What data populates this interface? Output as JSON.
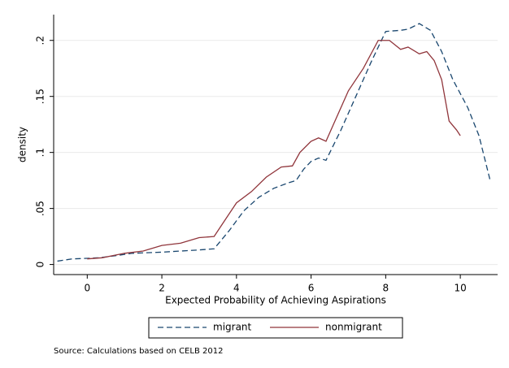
{
  "chart_data": {
    "type": "line",
    "x_label": "Expected Probability of Achieving Aspirations",
    "y_label": "density",
    "note": "Source: Calculations based on CELB 2012",
    "xlim": [
      -0.9,
      11
    ],
    "ylim": [
      -0.009,
      0.223
    ],
    "xticks": [
      0,
      2,
      4,
      6,
      8,
      10
    ],
    "yticks": [
      0,
      {
        "value": 0.05,
        "label": ".05"
      },
      {
        "value": 0.1,
        "label": ".1"
      },
      {
        "value": 0.15,
        "label": ".15"
      },
      {
        "value": 0.2,
        "label": ".2"
      }
    ],
    "grid": true,
    "legend": "bottom",
    "series": [
      {
        "name": "migrant",
        "color": "#1a476f",
        "line_style": "dashed",
        "x": [
          -0.8,
          -0.4,
          0,
          0.3,
          0.8,
          1.2,
          2,
          2.5,
          3,
          3.4,
          3.8,
          4.2,
          4.6,
          5,
          5.4,
          5.6,
          5.8,
          6,
          6.2,
          6.4,
          6.8,
          7.2,
          7.6,
          8,
          8.4,
          8.6,
          8.9,
          9.2,
          9.5,
          9.8,
          10.2,
          10.5,
          10.8
        ],
        "values": [
          0.003,
          0.005,
          0.0055,
          0.006,
          0.008,
          0.01,
          0.011,
          0.012,
          0.013,
          0.014,
          0.03,
          0.048,
          0.06,
          0.068,
          0.073,
          0.075,
          0.085,
          0.092,
          0.095,
          0.093,
          0.12,
          0.15,
          0.18,
          0.208,
          0.209,
          0.21,
          0.215,
          0.209,
          0.19,
          0.165,
          0.14,
          0.115,
          0.075
        ]
      },
      {
        "name": "nonmigrant",
        "color": "#90353b",
        "line_style": "solid",
        "x": [
          0,
          0.4,
          1,
          1.5,
          2,
          2.5,
          2.8,
          3,
          3.4,
          3.7,
          4,
          4.4,
          4.8,
          5.2,
          5.5,
          5.7,
          6,
          6.2,
          6.4,
          6.6,
          7,
          7.4,
          7.8,
          8.1,
          8.4,
          8.6,
          8.9,
          9.1,
          9.3,
          9.5,
          9.7,
          9.9,
          10
        ],
        "values": [
          0.005,
          0.006,
          0.01,
          0.012,
          0.017,
          0.019,
          0.022,
          0.024,
          0.025,
          0.04,
          0.055,
          0.065,
          0.078,
          0.087,
          0.088,
          0.1,
          0.11,
          0.113,
          0.11,
          0.125,
          0.155,
          0.175,
          0.2,
          0.2,
          0.192,
          0.194,
          0.188,
          0.19,
          0.182,
          0.165,
          0.128,
          0.12,
          0.115
        ]
      }
    ]
  }
}
